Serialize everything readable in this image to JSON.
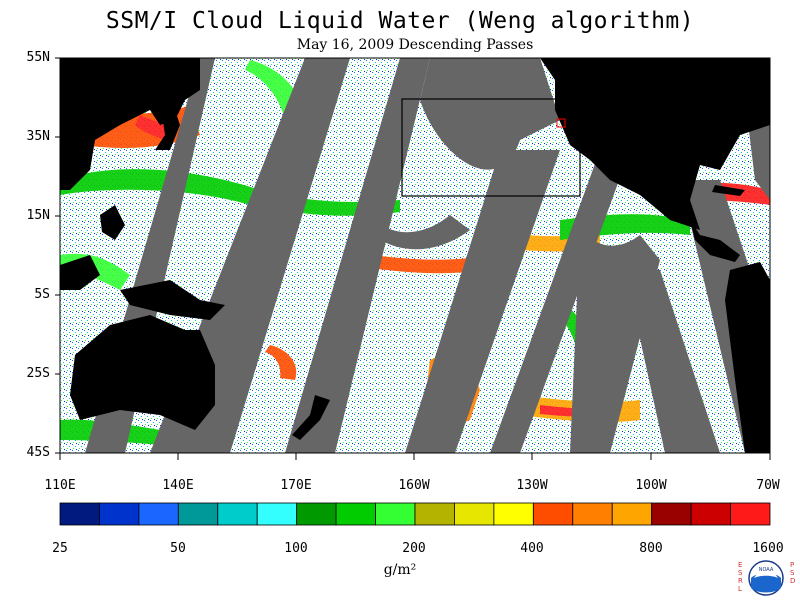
{
  "title": "SSM/I Cloud Liquid Water (Weng algorithm)",
  "subtitle": "May 16, 2009  Descending Passes",
  "lat_ticks": [
    "55N",
    "35N",
    "15N",
    "5S",
    "25S",
    "45S"
  ],
  "lon_ticks": [
    "110E",
    "140E",
    "170E",
    "160W",
    "130W",
    "100W",
    "70W"
  ],
  "colorbar": {
    "unit": "g/m²",
    "labels": [
      "25",
      "50",
      "100",
      "200",
      "400",
      "800",
      "1600"
    ],
    "colors": [
      "#001a80",
      "#0033cc",
      "#1a66ff",
      "#009999",
      "#00cccc",
      "#33ffff",
      "#009900",
      "#00cc00",
      "#33ff33",
      "#b3b300",
      "#e6e600",
      "#ffff00",
      "#ff4d00",
      "#ff8000",
      "#ffa500",
      "#990000",
      "#cc0000",
      "#ff1a1a"
    ]
  },
  "logo": {
    "left_text": "ESRL",
    "right_text": "PSD",
    "seal_text": "NOAA"
  }
}
